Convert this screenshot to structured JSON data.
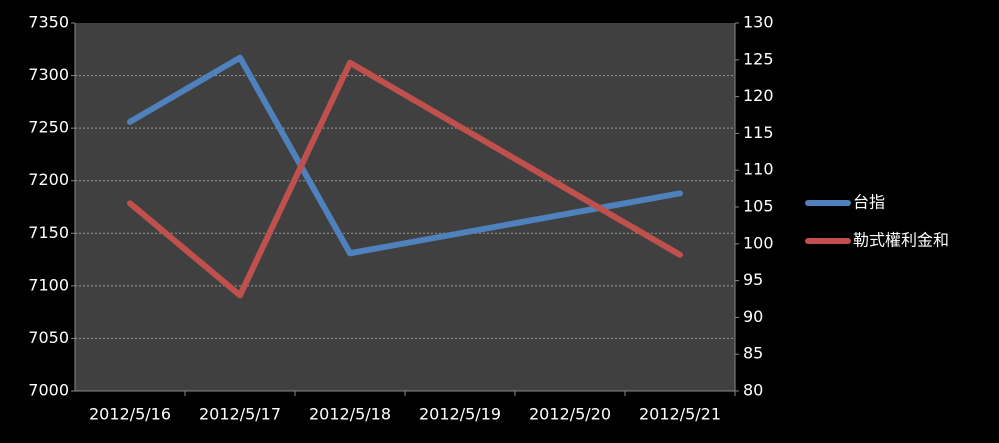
{
  "chart_data": {
    "type": "line",
    "x": [
      "2012/5/16",
      "2012/5/17",
      "2012/5/18",
      "2012/5/21"
    ],
    "xticks": [
      "2012/5/16",
      "2012/5/17",
      "2012/5/18",
      "2012/5/19",
      "2012/5/20",
      "2012/5/21"
    ],
    "series": [
      {
        "name": "台指",
        "color": "#4f81bd",
        "values": [
          7256,
          7317,
          7131,
          7188
        ]
      },
      {
        "name": "勒式權利金和",
        "color": "#c0504d",
        "axis": "y2",
        "values": [
          105.5,
          93,
          124.6,
          98.5
        ]
      }
    ],
    "ylim": [
      7000,
      7350
    ],
    "yticks": [
      7000,
      7050,
      7100,
      7150,
      7200,
      7250,
      7300,
      7350
    ],
    "y2lim": [
      80,
      130
    ],
    "y2ticks": [
      80,
      85,
      90,
      95,
      100,
      105,
      110,
      115,
      120,
      125,
      130
    ],
    "grid": true,
    "legend": "right"
  }
}
